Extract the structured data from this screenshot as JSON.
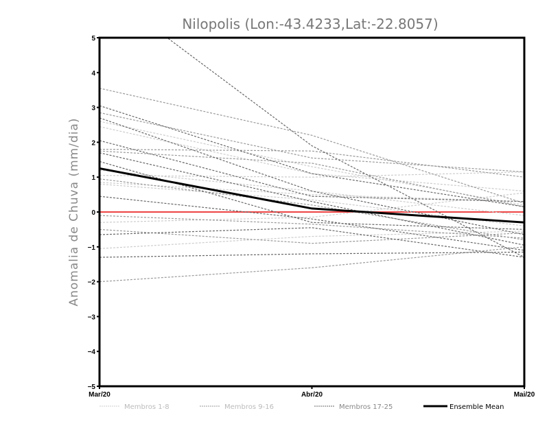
{
  "chart_data": {
    "type": "line",
    "title": "Nilopolis (Lon:-43.4233,Lat:-22.8057)",
    "xlabel": "",
    "ylabel": "Anomalia de Chuva (mm/dia)",
    "categories": [
      "Mar/20",
      "Abr/20",
      "Mai/20"
    ],
    "ylim": [
      -5,
      5
    ],
    "yticks": [
      -5,
      -4,
      -3,
      -2,
      -1,
      0,
      1,
      2,
      3,
      4,
      5
    ],
    "grid": false,
    "zero_line_color": "#ee4444",
    "legend_position": "bottom",
    "groups": [
      {
        "name": "Membros 1-8",
        "color": "#cccccc",
        "style": "dashed",
        "series": [
          [
            2.45,
            1.1,
            0.6
          ],
          [
            2.6,
            1.3,
            0.2
          ],
          [
            1.05,
            1.0,
            1.15
          ],
          [
            0.85,
            0.5,
            0.3
          ],
          [
            0.8,
            0.35,
            -0.4
          ],
          [
            -0.3,
            -0.15,
            0.55
          ],
          [
            -1.05,
            -0.7,
            -0.55
          ],
          [
            1.2,
            0.6,
            -0.1
          ]
        ]
      },
      {
        "name": "Membros 9-16",
        "color": "#999999",
        "style": "dashed",
        "series": [
          [
            3.55,
            2.2,
            0.25
          ],
          [
            2.85,
            1.55,
            1.15
          ],
          [
            1.8,
            1.75,
            1.0
          ],
          [
            0.95,
            0.2,
            -0.8
          ],
          [
            -0.1,
            -0.35,
            -0.75
          ],
          [
            -0.5,
            -0.9,
            -0.6
          ],
          [
            -2.0,
            -1.6,
            -1.0
          ],
          [
            1.75,
            1.4,
            0.15
          ]
        ]
      },
      {
        "name": "Membros 17-25",
        "color": "#666666",
        "style": "dashed",
        "series": [
          [
            6.45,
            1.9,
            -1.3
          ],
          [
            3.05,
            1.1,
            0.15
          ],
          [
            2.7,
            0.6,
            -0.65
          ],
          [
            2.05,
            0.45,
            0.3
          ],
          [
            1.7,
            0.3,
            -0.95
          ],
          [
            1.45,
            -0.3,
            -0.5
          ],
          [
            0.45,
            -0.2,
            -1.1
          ],
          [
            -0.65,
            -0.45,
            -1.3
          ],
          [
            -1.3,
            -1.2,
            -1.15
          ]
        ]
      }
    ],
    "ensemble_mean": {
      "name": "Ensemble Mean",
      "color": "#000000",
      "values": [
        1.25,
        0.1,
        -0.3
      ]
    }
  }
}
